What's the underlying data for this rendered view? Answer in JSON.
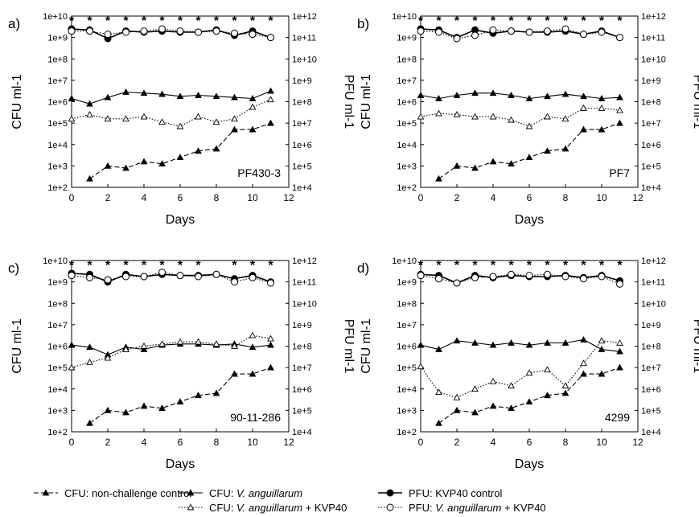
{
  "chart_data": {
    "type": "line",
    "x_axis": {
      "label": "Days",
      "range": [
        0,
        12
      ],
      "ticks": [
        "0",
        "2",
        "4",
        "6",
        "8",
        "10",
        "12"
      ]
    },
    "left_axis": {
      "label": "CFU ml-1",
      "scale": "log",
      "range": [
        2,
        10
      ],
      "ticks": [
        "1e+2",
        "1e+3",
        "1e+4",
        "1e+5",
        "1e+6",
        "1e+7",
        "1e+8",
        "1e+9",
        "1e+10"
      ]
    },
    "right_axis": {
      "label": "PFU ml-1",
      "scale": "log",
      "range": [
        4,
        12
      ],
      "ticks": [
        "1e+4",
        "1e+5",
        "1e+6",
        "1e+7",
        "1e+8",
        "1e+9",
        "1e+10",
        "1e+11",
        "1e+12"
      ]
    },
    "legend": [
      {
        "key": "cfu_control",
        "label_parts": [
          {
            "text": "CFU: non-challenge control",
            "italic": false
          }
        ],
        "dash": "6,3",
        "marker": "triangle-filled"
      },
      {
        "key": "cfu_va",
        "label_parts": [
          {
            "text": "CFU: ",
            "italic": false
          },
          {
            "text": "V. anguillarum",
            "italic": true
          }
        ],
        "dash": "",
        "marker": "triangle-filled"
      },
      {
        "key": "cfu_va_kvp",
        "label_parts": [
          {
            "text": "CFU: ",
            "italic": false
          },
          {
            "text": "V. anguillarum",
            "italic": true
          },
          {
            "text": " + KVP40",
            "italic": false
          }
        ],
        "dash": "1.5,2",
        "marker": "triangle-open"
      },
      {
        "key": "pfu_control",
        "label_parts": [
          {
            "text": "PFU: KVP40 control",
            "italic": false
          }
        ],
        "dash": "",
        "marker": "circle-filled"
      },
      {
        "key": "pfu_va_kvp",
        "label_parts": [
          {
            "text": "PFU: ",
            "italic": false
          },
          {
            "text": "V. anguillarum",
            "italic": true
          },
          {
            "text": " + KVP40",
            "italic": false
          }
        ],
        "dash": "1.5,2",
        "marker": "circle-open"
      }
    ],
    "panels": [
      {
        "letter": "a)",
        "strain": "PF430-3",
        "star_days": [
          0,
          1,
          2,
          3,
          4,
          5,
          6,
          7,
          8,
          9,
          10,
          11
        ],
        "series": {
          "cfu_control": {
            "x": [
              1,
              2,
              3,
              4,
              5,
              6,
              7,
              8,
              9,
              10,
              11
            ],
            "log10": [
              2.4,
              3.0,
              2.9,
              3.2,
              3.1,
              3.4,
              3.7,
              3.8,
              4.7,
              4.7,
              5.0
            ]
          },
          "cfu_va": {
            "x": [
              0,
              1,
              2,
              3,
              4,
              5,
              6,
              7,
              8,
              9,
              10,
              11
            ],
            "log10": [
              6.15,
              5.9,
              6.2,
              6.45,
              6.4,
              6.35,
              6.25,
              6.3,
              6.25,
              6.2,
              6.15,
              6.5
            ]
          },
          "cfu_va_kvp": {
            "x": [
              0,
              1,
              2,
              3,
              4,
              5,
              6,
              7,
              8,
              9,
              10,
              11
            ],
            "log10": [
              5.2,
              5.4,
              5.2,
              5.2,
              5.3,
              5.05,
              4.85,
              5.3,
              5.05,
              5.2,
              5.75,
              6.1
            ]
          },
          "pfu_control": {
            "x": [
              0,
              1,
              2,
              3,
              4,
              5,
              6,
              7,
              8,
              9,
              10,
              11
            ],
            "log10": [
              9.4,
              9.35,
              8.95,
              9.3,
              9.25,
              9.3,
              9.25,
              9.25,
              9.35,
              9.1,
              9.3,
              9.0
            ]
          },
          "pfu_va_kvp": {
            "x": [
              0,
              1,
              2,
              3,
              4,
              5,
              6,
              7,
              8,
              9,
              10,
              11
            ],
            "log10": [
              9.3,
              9.3,
              9.15,
              9.25,
              9.3,
              9.4,
              9.3,
              9.25,
              9.3,
              9.2,
              9.15,
              9.0
            ]
          }
        }
      },
      {
        "letter": "b)",
        "strain": "PF7",
        "star_days": [
          0,
          1,
          2,
          3,
          4,
          5,
          6,
          7,
          8,
          9,
          10,
          11
        ],
        "series": {
          "cfu_control": {
            "x": [
              1,
              2,
              3,
              4,
              5,
              6,
              7,
              8,
              9,
              10,
              11
            ],
            "log10": [
              2.4,
              3.0,
              2.9,
              3.2,
              3.1,
              3.4,
              3.7,
              3.8,
              4.7,
              4.7,
              5.0
            ]
          },
          "cfu_va": {
            "x": [
              0,
              1,
              2,
              3,
              4,
              5,
              6,
              7,
              8,
              9,
              10,
              11
            ],
            "log10": [
              6.3,
              6.15,
              6.3,
              6.4,
              6.4,
              6.3,
              6.15,
              6.25,
              6.35,
              6.25,
              6.15,
              6.2
            ]
          },
          "cfu_va_kvp": {
            "x": [
              0,
              1,
              2,
              3,
              4,
              5,
              6,
              7,
              8,
              9,
              10,
              11
            ],
            "log10": [
              5.3,
              5.45,
              5.4,
              5.3,
              5.3,
              5.15,
              4.85,
              5.3,
              5.2,
              5.7,
              5.7,
              5.6
            ]
          },
          "pfu_control": {
            "x": [
              0,
              1,
              2,
              3,
              4,
              5,
              6,
              7,
              8,
              9,
              10,
              11
            ],
            "log10": [
              9.4,
              9.35,
              9.0,
              9.35,
              9.2,
              9.3,
              9.25,
              9.25,
              9.3,
              9.15,
              9.3,
              9.0
            ]
          },
          "pfu_va_kvp": {
            "x": [
              0,
              1,
              2,
              3,
              4,
              5,
              6,
              7,
              8,
              9,
              10,
              11
            ],
            "log10": [
              9.3,
              9.25,
              8.95,
              9.1,
              9.35,
              9.3,
              9.25,
              9.3,
              9.4,
              9.15,
              9.25,
              9.0
            ]
          }
        }
      },
      {
        "letter": "c)",
        "strain": "90-11-286",
        "star_days": [
          0,
          1,
          2,
          3,
          4,
          5,
          6,
          7,
          9,
          10,
          11
        ],
        "series": {
          "cfu_control": {
            "x": [
              1,
              2,
              3,
              4,
              5,
              6,
              7,
              8,
              9,
              10,
              11
            ],
            "log10": [
              2.4,
              3.0,
              2.9,
              3.2,
              3.1,
              3.4,
              3.7,
              3.8,
              4.7,
              4.7,
              5.0
            ]
          },
          "cfu_va": {
            "x": [
              0,
              1,
              2,
              3,
              4,
              5,
              6,
              7,
              8,
              9,
              10,
              11
            ],
            "log10": [
              6.05,
              5.95,
              5.6,
              5.95,
              5.85,
              6.05,
              6.1,
              6.1,
              6.05,
              6.1,
              5.95,
              6.05
            ]
          },
          "cfu_va_kvp": {
            "x": [
              0,
              1,
              2,
              3,
              4,
              5,
              6,
              7,
              8,
              9,
              10,
              11
            ],
            "log10": [
              5.0,
              5.25,
              5.45,
              5.85,
              6.0,
              6.1,
              6.2,
              6.2,
              6.1,
              6.0,
              6.5,
              6.35
            ]
          },
          "pfu_control": {
            "x": [
              0,
              1,
              2,
              3,
              4,
              5,
              6,
              7,
              8,
              9,
              10,
              11
            ],
            "log10": [
              9.4,
              9.35,
              9.0,
              9.35,
              9.25,
              9.35,
              9.3,
              9.3,
              9.35,
              9.15,
              9.3,
              9.0
            ]
          },
          "pfu_va_kvp": {
            "x": [
              0,
              1,
              2,
              3,
              4,
              5,
              6,
              7,
              8,
              9,
              10,
              11
            ],
            "log10": [
              9.3,
              9.2,
              9.1,
              9.25,
              9.25,
              9.45,
              9.3,
              9.25,
              9.35,
              9.0,
              9.2,
              8.95
            ]
          }
        }
      },
      {
        "letter": "d)",
        "strain": "4299",
        "star_days": [
          0,
          1,
          2,
          3,
          4,
          5,
          6,
          7,
          8,
          9,
          10,
          11
        ],
        "series": {
          "cfu_control": {
            "x": [
              1,
              2,
              3,
              4,
              5,
              6,
              7,
              8,
              9,
              10,
              11
            ],
            "log10": [
              2.4,
              3.0,
              2.9,
              3.2,
              3.1,
              3.4,
              3.7,
              3.8,
              4.7,
              4.7,
              5.0
            ]
          },
          "cfu_va": {
            "x": [
              0,
              1,
              2,
              3,
              4,
              5,
              6,
              7,
              8,
              9,
              10,
              11
            ],
            "log10": [
              6.05,
              5.85,
              6.25,
              6.15,
              6.05,
              6.15,
              6.05,
              6.15,
              6.15,
              6.3,
              5.85,
              5.75
            ]
          },
          "cfu_va_kvp": {
            "x": [
              0,
              1,
              2,
              3,
              4,
              5,
              6,
              7,
              8,
              9,
              10,
              11
            ],
            "log10": [
              5.05,
              3.85,
              3.6,
              4.0,
              4.35,
              4.15,
              4.75,
              4.9,
              4.15,
              5.2,
              6.25,
              6.15
            ]
          },
          "pfu_control": {
            "x": [
              0,
              1,
              2,
              3,
              4,
              5,
              6,
              7,
              8,
              9,
              10,
              11
            ],
            "log10": [
              9.35,
              9.3,
              8.95,
              9.3,
              9.2,
              9.3,
              9.25,
              9.25,
              9.3,
              9.2,
              9.3,
              9.05
            ]
          },
          "pfu_va_kvp": {
            "x": [
              0,
              1,
              2,
              3,
              4,
              5,
              6,
              7,
              8,
              9,
              10,
              11
            ],
            "log10": [
              9.3,
              9.15,
              8.95,
              9.2,
              9.25,
              9.35,
              9.3,
              9.35,
              9.25,
              9.15,
              9.25,
              8.9
            ]
          }
        }
      }
    ]
  }
}
